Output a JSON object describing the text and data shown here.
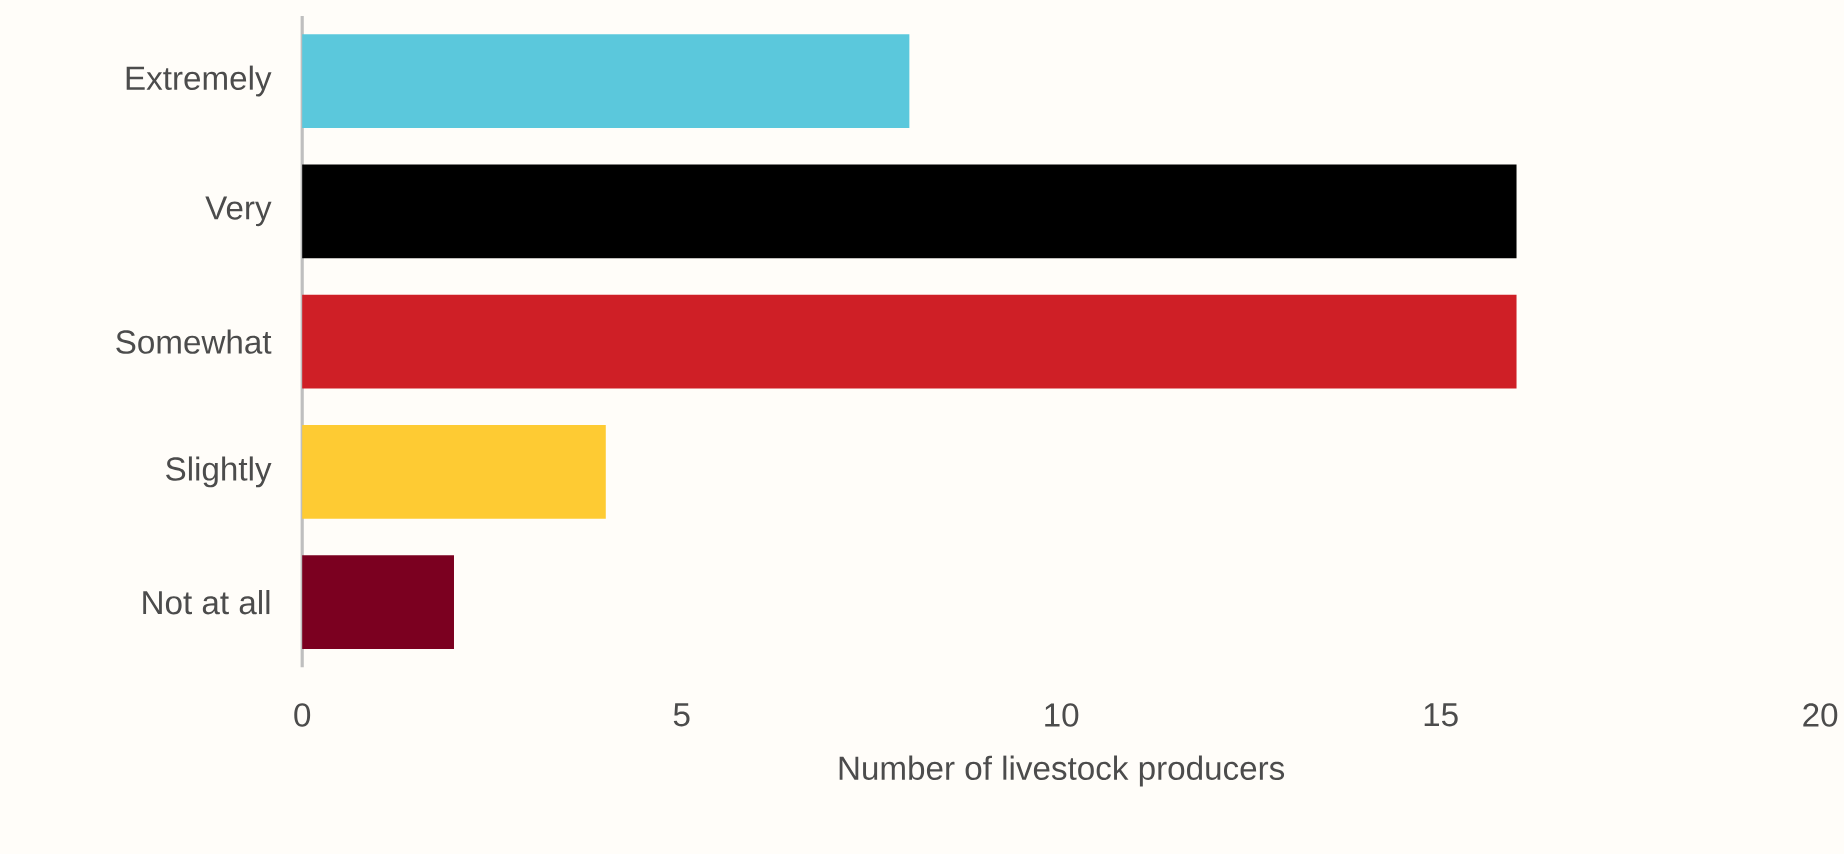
{
  "chart_data": {
    "type": "bar",
    "orientation": "horizontal",
    "xlabel": "Number of livestock producers",
    "categories": [
      "Extremely",
      "Very",
      "Somewhat",
      "Slightly",
      "Not at all"
    ],
    "values": [
      8,
      16,
      16,
      4,
      2
    ],
    "colors": [
      "#5bc8dc",
      "#000000",
      "#cf1f26",
      "#fecb33",
      "#7b0020"
    ],
    "xlim": [
      0,
      20
    ],
    "xticks": [
      0,
      5,
      10,
      15,
      20
    ]
  }
}
